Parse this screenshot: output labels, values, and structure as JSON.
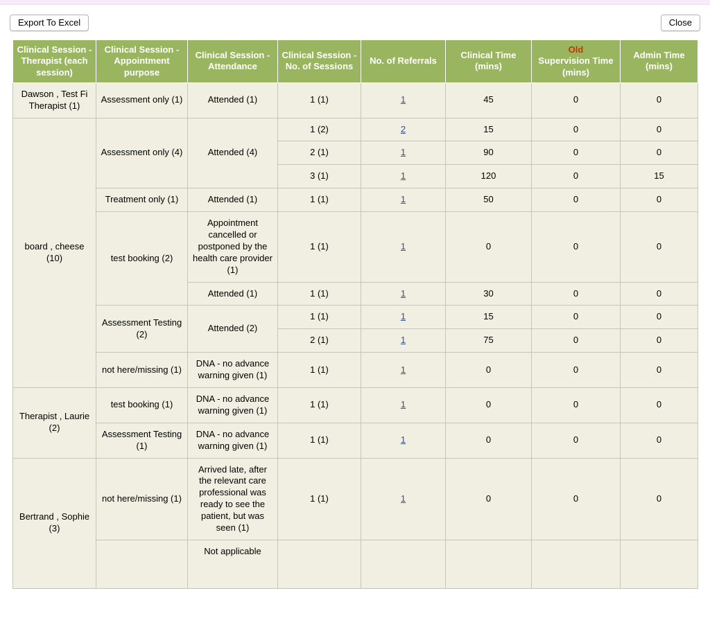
{
  "toolbar": {
    "export_label": "Export To Excel",
    "close_label": "Close"
  },
  "colors": {
    "header_bg": "#9ab55f",
    "header_text": "#ffffff",
    "old_red": "#cc3300",
    "cell_bg": "#f0efe2",
    "link": "#35518c",
    "top_strip": "#f8ecf8"
  },
  "table": {
    "headers": [
      {
        "label": "Clinical Session - Therapist (each session)"
      },
      {
        "label": "Clinical Session - Appointment purpose"
      },
      {
        "label": "Clinical Session - Attendance"
      },
      {
        "label": "Clinical Session - No. of Sessions"
      },
      {
        "label": "No. of Referrals"
      },
      {
        "label": "Clinical Time (mins)"
      },
      {
        "red": "Old",
        "label": "Supervision Time (mins)"
      },
      {
        "label": "Admin Time (mins)"
      }
    ],
    "rows": [
      [
        {
          "t": "Dawson , Test Fi Therapist (1)"
        },
        {
          "t": "Assessment only (1)"
        },
        {
          "t": "Attended (1)"
        },
        {
          "t": "1 (1)"
        },
        {
          "t": "1",
          "link": true
        },
        {
          "t": "45"
        },
        {
          "t": "0"
        },
        {
          "t": "0"
        }
      ],
      [
        {
          "t": "board , cheese (10)",
          "rs": 9
        },
        {
          "t": "Assessment only (4)",
          "rs": 3
        },
        {
          "t": "Attended (4)",
          "rs": 3
        },
        {
          "t": "1 (2)"
        },
        {
          "t": "2",
          "link": true
        },
        {
          "t": "15"
        },
        {
          "t": "0"
        },
        {
          "t": "0"
        }
      ],
      [
        {
          "t": "2 (1)"
        },
        {
          "t": "1",
          "link": true
        },
        {
          "t": "90"
        },
        {
          "t": "0"
        },
        {
          "t": "0"
        }
      ],
      [
        {
          "t": "3 (1)"
        },
        {
          "t": "1",
          "link": true
        },
        {
          "t": "120"
        },
        {
          "t": "0"
        },
        {
          "t": "15"
        }
      ],
      [
        {
          "t": "Treatment only (1)"
        },
        {
          "t": "Attended (1)"
        },
        {
          "t": "1 (1)"
        },
        {
          "t": "1",
          "link": true
        },
        {
          "t": "50"
        },
        {
          "t": "0"
        },
        {
          "t": "0"
        }
      ],
      [
        {
          "t": "test booking (2)",
          "rs": 2
        },
        {
          "t": "Appointment cancelled or postponed by the health care provider (1)"
        },
        {
          "t": "1 (1)"
        },
        {
          "t": "1",
          "link": true
        },
        {
          "t": "0"
        },
        {
          "t": "0"
        },
        {
          "t": "0"
        }
      ],
      [
        {
          "t": "Attended (1)"
        },
        {
          "t": "1 (1)"
        },
        {
          "t": "1",
          "link": true
        },
        {
          "t": "30"
        },
        {
          "t": "0"
        },
        {
          "t": "0"
        }
      ],
      [
        {
          "t": "Assessment Testing (2)",
          "rs": 2
        },
        {
          "t": "Attended (2)",
          "rs": 2
        },
        {
          "t": "1 (1)"
        },
        {
          "t": "1",
          "link": true
        },
        {
          "t": "15"
        },
        {
          "t": "0"
        },
        {
          "t": "0"
        }
      ],
      [
        {
          "t": "2 (1)"
        },
        {
          "t": "1",
          "link": true
        },
        {
          "t": "75"
        },
        {
          "t": "0"
        },
        {
          "t": "0"
        }
      ],
      [
        {
          "t": "not here/missing (1)"
        },
        {
          "t": "DNA - no advance warning given (1)"
        },
        {
          "t": "1 (1)"
        },
        {
          "t": "1",
          "link": true
        },
        {
          "t": "0"
        },
        {
          "t": "0"
        },
        {
          "t": "0"
        }
      ],
      [
        {
          "t": "Therapist , Laurie (2)",
          "rs": 2
        },
        {
          "t": "test booking (1)"
        },
        {
          "t": "DNA - no advance warning given (1)"
        },
        {
          "t": "1 (1)"
        },
        {
          "t": "1",
          "link": true
        },
        {
          "t": "0"
        },
        {
          "t": "0"
        },
        {
          "t": "0"
        }
      ],
      [
        {
          "t": "Assessment Testing (1)"
        },
        {
          "t": "DNA - no advance warning given (1)"
        },
        {
          "t": "1 (1)"
        },
        {
          "t": "1",
          "link": true
        },
        {
          "t": "0"
        },
        {
          "t": "0"
        },
        {
          "t": "0"
        }
      ],
      [
        {
          "t": "Bertrand , Sophie (3)",
          "rs": 2
        },
        {
          "t": "not here/missing (1)"
        },
        {
          "t": "Arrived late, after the relevant care professional was ready to see the patient, but was seen (1)"
        },
        {
          "t": "1 (1)"
        },
        {
          "t": "1",
          "link": true
        },
        {
          "t": "0"
        },
        {
          "t": "0"
        },
        {
          "t": "0"
        }
      ],
      [
        {
          "t": ""
        },
        {
          "t": "Not applicable"
        },
        {
          "t": ""
        },
        {
          "t": ""
        },
        {
          "t": ""
        },
        {
          "t": ""
        },
        {
          "t": ""
        }
      ]
    ]
  }
}
